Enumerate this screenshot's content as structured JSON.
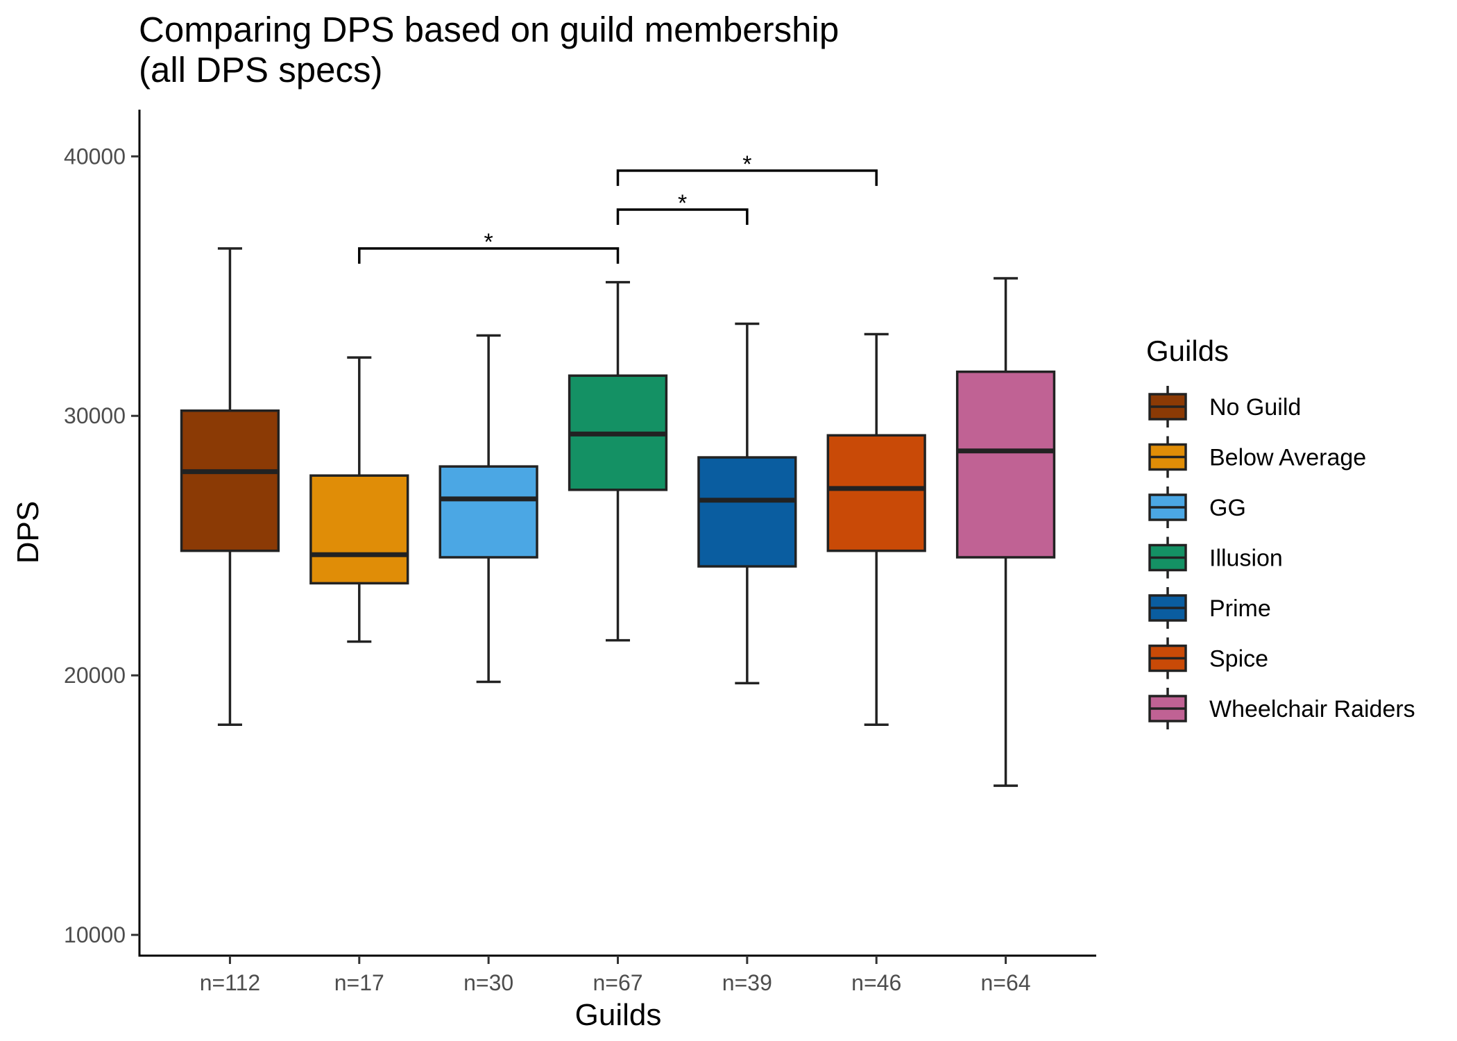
{
  "chart_data": {
    "type": "boxplot",
    "title_lines": [
      "Comparing DPS based on guild membership",
      "(all DPS specs)"
    ],
    "xlabel": "Guilds",
    "ylabel": "DPS",
    "ylim": [
      9200,
      41800
    ],
    "yticks": [
      10000,
      20000,
      30000,
      40000
    ],
    "grid": false,
    "legend": {
      "title": "Guilds",
      "position": "right"
    },
    "categories": [
      "n=112",
      "n=17",
      "n=30",
      "n=67",
      "n=39",
      "n=46",
      "n=64"
    ],
    "series": [
      {
        "name": "No Guild",
        "color": "#8B3A05",
        "whisker_low": 18100,
        "q1": 24800,
        "median": 27850,
        "q3": 30200,
        "whisker_high": 36450
      },
      {
        "name": "Below Average",
        "color": "#E08D07",
        "whisker_low": 21300,
        "q1": 23550,
        "median": 24650,
        "q3": 27700,
        "whisker_high": 32250
      },
      {
        "name": "GG",
        "color": "#4BA7E4",
        "whisker_low": 19750,
        "q1": 24550,
        "median": 26800,
        "q3": 28050,
        "whisker_high": 33100
      },
      {
        "name": "Illusion",
        "color": "#149164",
        "whisker_low": 21350,
        "q1": 27150,
        "median": 29300,
        "q3": 31550,
        "whisker_high": 35150
      },
      {
        "name": "Prime",
        "color": "#0A5DA0",
        "whisker_low": 19700,
        "q1": 24200,
        "median": 26750,
        "q3": 28400,
        "whisker_high": 33550
      },
      {
        "name": "Spice",
        "color": "#C94A07",
        "whisker_low": 18100,
        "q1": 24800,
        "median": 27200,
        "q3": 29250,
        "whisker_high": 33150
      },
      {
        "name": "Wheelchair Raiders",
        "color": "#C06294",
        "whisker_low": 15750,
        "q1": 24550,
        "median": 28650,
        "q3": 31700,
        "whisker_high": 35300
      }
    ],
    "annotations": [
      {
        "from": 1,
        "to": 3,
        "y": 36450,
        "label": "*"
      },
      {
        "from": 3,
        "to": 4,
        "y": 37950,
        "label": "*"
      },
      {
        "from": 3,
        "to": 5,
        "y": 39450,
        "label": "*"
      }
    ]
  }
}
